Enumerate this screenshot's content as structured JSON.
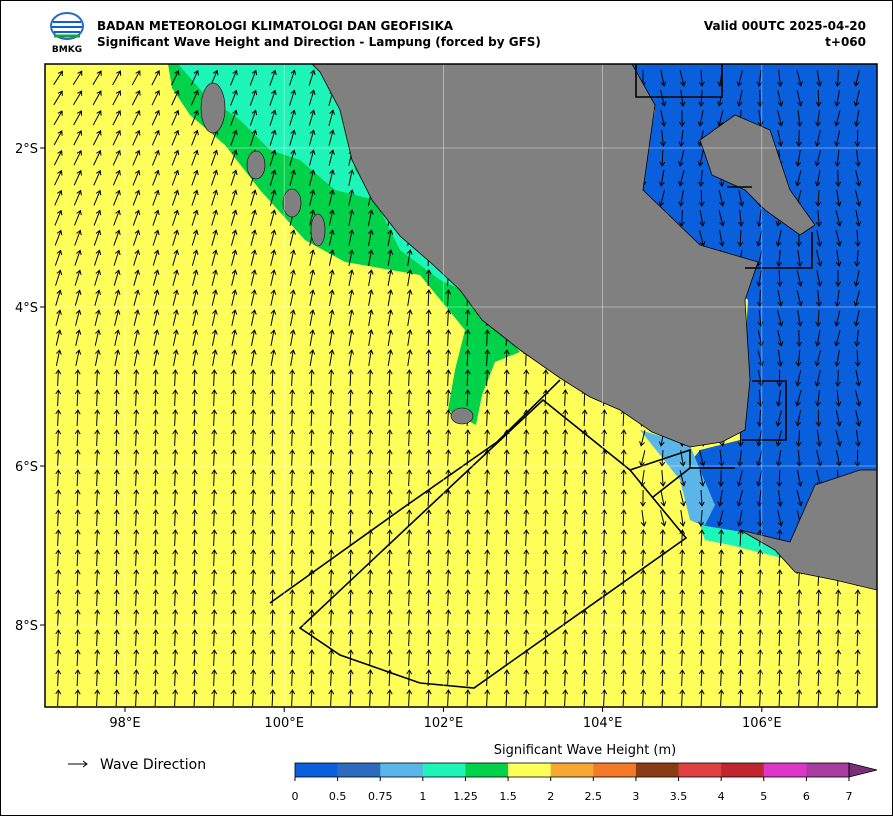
{
  "header": {
    "title": "BADAN METEOROLOGI KLIMATOLOGI DAN GEOFISIKA",
    "subtitle": "Significant Wave Height and Direction - Lampung (forced by GFS)",
    "valid": "Valid 00UTC 2025-04-20",
    "step": "t+060",
    "logo_text": "BMKG"
  },
  "map": {
    "lat_labels": [
      "2°S",
      "4°S",
      "6°S",
      "8°S"
    ],
    "lon_labels": [
      "98°E",
      "100°E",
      "102°E",
      "104°E",
      "106°E"
    ]
  },
  "legend": {
    "arrow_label": "Wave Direction"
  },
  "colorbar": {
    "title": "Significant Wave Height (m)",
    "ticks": [
      0,
      0.5,
      0.75,
      1,
      1.25,
      1.5,
      2,
      2.5,
      3,
      3.5,
      4,
      5,
      6,
      7
    ],
    "colors": [
      "#0a5fdc",
      "#2c6cbf",
      "#5ab6e8",
      "#1ef5b8",
      "#00d24a",
      "#ffff5a",
      "#f6a833",
      "#f57a28",
      "#8c3c14",
      "#e04040",
      "#c0262e",
      "#de36c8",
      "#a83ca0"
    ],
    "extend_color": "#7a2e78"
  }
}
